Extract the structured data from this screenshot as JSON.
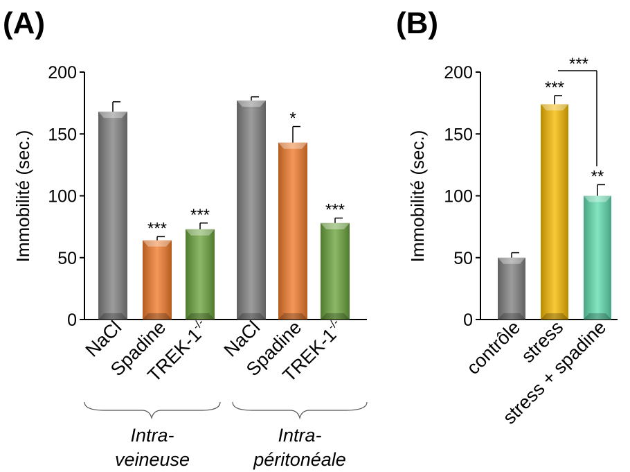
{
  "chart_data": [
    {
      "type": "bar",
      "panel_label": "(A)",
      "ylabel": "Immobilité (sec.)",
      "ylim": [
        0,
        200
      ],
      "yticks": [
        0,
        50,
        100,
        150,
        200
      ],
      "categories": [
        {
          "prefix": "NaCl",
          "sup": ""
        },
        {
          "prefix": "Spadine",
          "sup": ""
        },
        {
          "prefix": "TREK-1",
          "sup": "-/-"
        },
        {
          "prefix": "NaCl",
          "sup": ""
        },
        {
          "prefix": "Spadine",
          "sup": ""
        },
        {
          "prefix": "TREK-1",
          "sup": "-/-"
        }
      ],
      "values": [
        168,
        64,
        73,
        177,
        143,
        78
      ],
      "errors": [
        8,
        3,
        5,
        3,
        13,
        4
      ],
      "significance": [
        "",
        "***",
        "***",
        "",
        "*",
        "***"
      ],
      "colors": [
        "#808080",
        "#f07a2a",
        "#6aa33c",
        "#808080",
        "#f07a2a",
        "#6aa33c"
      ],
      "groups": [
        {
          "line1": "Intra-",
          "line2": "veineuse"
        },
        {
          "line1": "Intra-",
          "line2": "péritonéale"
        }
      ]
    },
    {
      "type": "bar",
      "panel_label": "(B)",
      "ylabel": "Immobilité (sec.)",
      "ylim": [
        0,
        200
      ],
      "yticks": [
        0,
        50,
        100,
        150,
        200
      ],
      "categories": [
        {
          "prefix": "contrôle",
          "sup": ""
        },
        {
          "prefix": "stress",
          "sup": ""
        },
        {
          "prefix": "stress + spadine",
          "sup": ""
        }
      ],
      "values": [
        50,
        174,
        100
      ],
      "errors": [
        4,
        7,
        9
      ],
      "significance": [
        "",
        "***",
        "**"
      ],
      "colors": [
        "#808080",
        "#f5b800",
        "#5fdcae"
      ],
      "bracket": {
        "from": 1,
        "to": 2,
        "label": "***"
      }
    }
  ]
}
